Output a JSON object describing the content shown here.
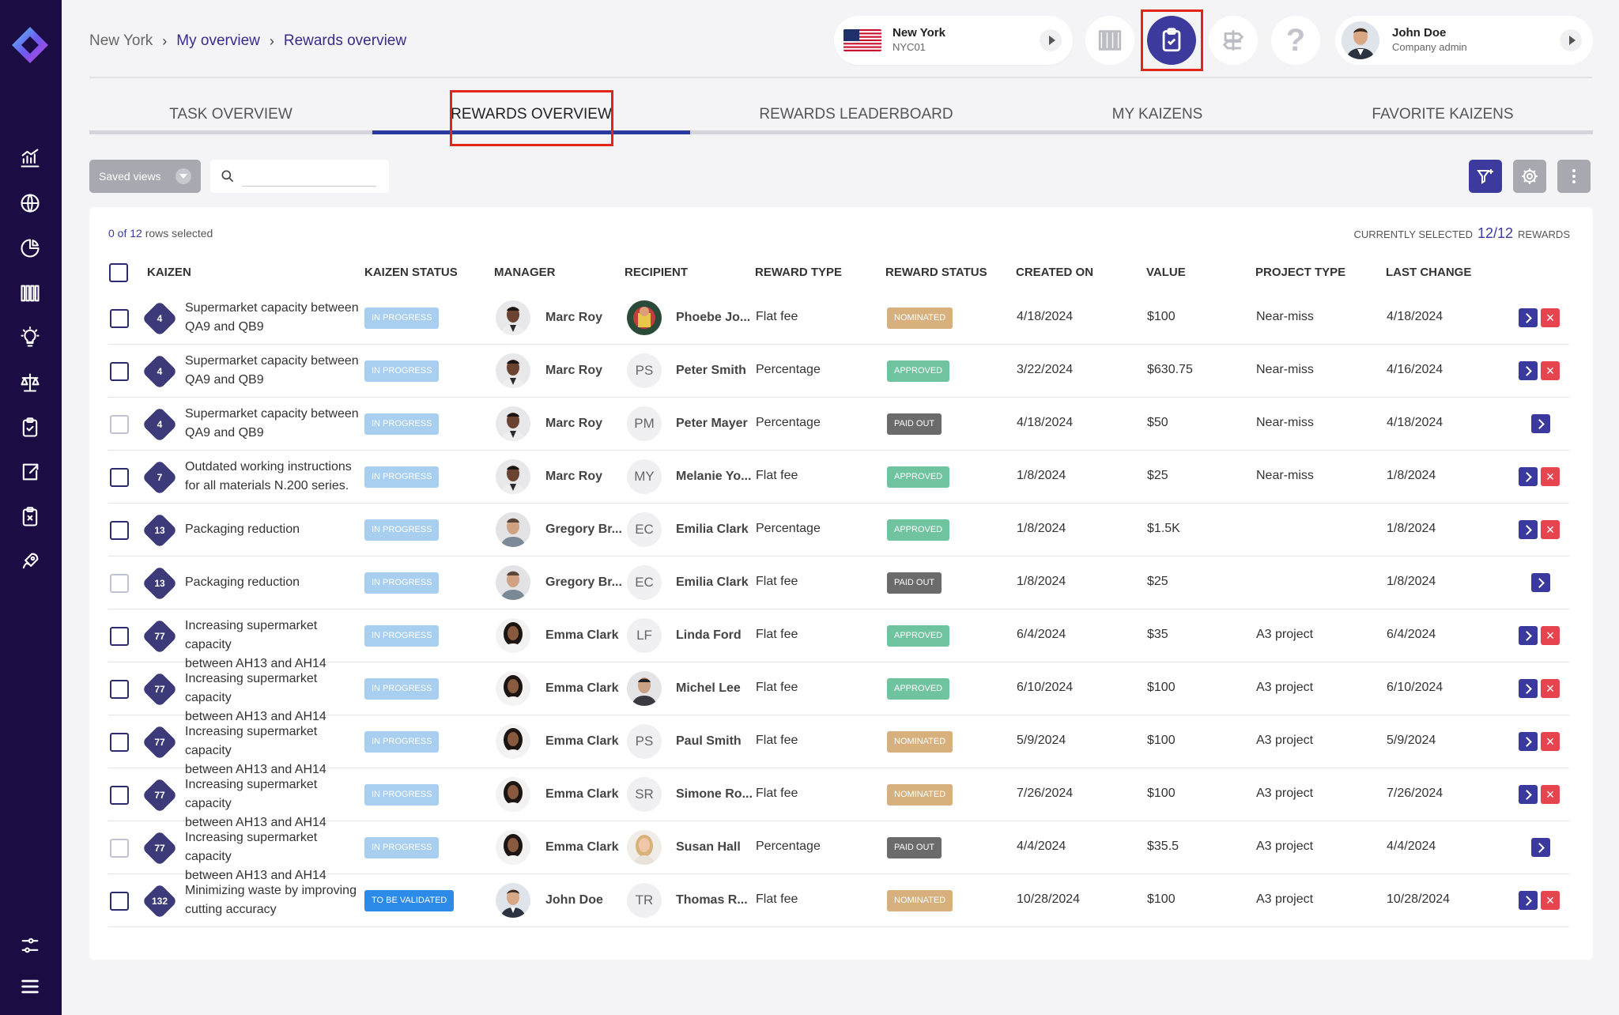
{
  "breadcrumb": {
    "root": "New York",
    "middle": "My overview",
    "current": "Rewards overview"
  },
  "location": {
    "name": "New York",
    "code": "NYC01"
  },
  "user": {
    "name": "John Doe",
    "role": "Company admin"
  },
  "tabs": [
    {
      "label": "TASK OVERVIEW"
    },
    {
      "label": "REWARDS OVERVIEW"
    },
    {
      "label": "REWARDS LEADERBOARD"
    },
    {
      "label": "MY KAIZENS"
    },
    {
      "label": "FAVORITE KAIZENS"
    }
  ],
  "toolbar": {
    "saved_views": "Saved views",
    "search_value": ""
  },
  "selection": {
    "selected_text": "0 of 12",
    "rows_selected": "rows selected",
    "current_label": "CURRENTLY SELECTED",
    "current_count": "12/12",
    "current_suffix": "REWARDS"
  },
  "columns": [
    "KAIZEN",
    "KAIZEN STATUS",
    "MANAGER",
    "RECIPIENT",
    "REWARD TYPE",
    "REWARD STATUS",
    "CREATED ON",
    "VALUE",
    "PROJECT TYPE",
    "LAST CHANGE"
  ],
  "colors": {
    "accent": "#3d3a9e",
    "sidebar": "#1b0d44",
    "approved": "#6fc49f",
    "nominated": "#d7b07d",
    "paid_out": "#6b6b6b",
    "in_progress": "#a8cff0",
    "to_validate": "#2c8be8"
  },
  "rows": [
    {
      "kaizen_id": "4",
      "kaizen_line1": "Supermarket capacity between",
      "kaizen_line2": "QA9 and QB9",
      "kaizen_status": "IN PROGRESS",
      "manager": "Marc Roy",
      "recipient": "Phoebe Jo...",
      "recipient_initials": "",
      "reward_type": "Flat fee",
      "reward_status": "NOMINATED",
      "created_on": "4/18/2024",
      "value": "$100",
      "project_type": "Near-miss",
      "last_change": "4/18/2024"
    },
    {
      "kaizen_id": "4",
      "kaizen_line1": "Supermarket capacity between",
      "kaizen_line2": "QA9 and QB9",
      "kaizen_status": "IN PROGRESS",
      "manager": "Marc Roy",
      "recipient": "Peter Smith",
      "recipient_initials": "PS",
      "reward_type": "Percentage",
      "reward_status": "APPROVED",
      "created_on": "3/22/2024",
      "value": "$630.75",
      "project_type": "Near-miss",
      "last_change": "4/16/2024"
    },
    {
      "kaizen_id": "4",
      "kaizen_line1": "Supermarket capacity between",
      "kaizen_line2": "QA9 and QB9",
      "kaizen_status": "IN PROGRESS",
      "manager": "Marc Roy",
      "recipient": "Peter Mayer",
      "recipient_initials": "PM",
      "reward_type": "Percentage",
      "reward_status": "PAID OUT",
      "created_on": "4/18/2024",
      "value": "$50",
      "project_type": "Near-miss",
      "last_change": "4/18/2024"
    },
    {
      "kaizen_id": "7",
      "kaizen_line1": "Outdated working instructions",
      "kaizen_line2": "for all materials N.200 series.",
      "kaizen_status": "IN PROGRESS",
      "manager": "Marc Roy",
      "recipient": "Melanie Yo...",
      "recipient_initials": "MY",
      "reward_type": "Flat fee",
      "reward_status": "APPROVED",
      "created_on": "1/8/2024",
      "value": "$25",
      "project_type": "Near-miss",
      "last_change": "1/8/2024"
    },
    {
      "kaizen_id": "13",
      "kaizen_line1": "Packaging reduction",
      "kaizen_line2": "",
      "kaizen_status": "IN PROGRESS",
      "manager": "Gregory Br...",
      "recipient": "Emilia Clark",
      "recipient_initials": "EC",
      "reward_type": "Percentage",
      "reward_status": "APPROVED",
      "created_on": "1/8/2024",
      "value": "$1.5K",
      "project_type": "",
      "last_change": "1/8/2024"
    },
    {
      "kaizen_id": "13",
      "kaizen_line1": "Packaging reduction",
      "kaizen_line2": "",
      "kaizen_status": "IN PROGRESS",
      "manager": "Gregory Br...",
      "recipient": "Emilia Clark",
      "recipient_initials": "EC",
      "reward_type": "Flat fee",
      "reward_status": "PAID OUT",
      "created_on": "1/8/2024",
      "value": "$25",
      "project_type": "",
      "last_change": "1/8/2024"
    },
    {
      "kaizen_id": "77",
      "kaizen_line1": "Increasing supermarket capacity",
      "kaizen_line2": "between AH13 and AH14",
      "kaizen_status": "IN PROGRESS",
      "manager": "Emma Clark",
      "recipient": "Linda Ford",
      "recipient_initials": "LF",
      "reward_type": "Flat fee",
      "reward_status": "APPROVED",
      "created_on": "6/4/2024",
      "value": "$35",
      "project_type": "A3 project",
      "last_change": "6/4/2024"
    },
    {
      "kaizen_id": "77",
      "kaizen_line1": "Increasing supermarket capacity",
      "kaizen_line2": "between AH13 and AH14",
      "kaizen_status": "IN PROGRESS",
      "manager": "Emma Clark",
      "recipient": "Michel Lee",
      "recipient_initials": "",
      "reward_type": "Flat fee",
      "reward_status": "APPROVED",
      "created_on": "6/10/2024",
      "value": "$100",
      "project_type": "A3 project",
      "last_change": "6/10/2024"
    },
    {
      "kaizen_id": "77",
      "kaizen_line1": "Increasing supermarket capacity",
      "kaizen_line2": "between AH13 and AH14",
      "kaizen_status": "IN PROGRESS",
      "manager": "Emma Clark",
      "recipient": "Paul Smith",
      "recipient_initials": "PS",
      "reward_type": "Flat fee",
      "reward_status": "NOMINATED",
      "created_on": "5/9/2024",
      "value": "$100",
      "project_type": "A3 project",
      "last_change": "5/9/2024"
    },
    {
      "kaizen_id": "77",
      "kaizen_line1": "Increasing supermarket capacity",
      "kaizen_line2": "between AH13 and AH14",
      "kaizen_status": "IN PROGRESS",
      "manager": "Emma Clark",
      "recipient": "Simone Ro...",
      "recipient_initials": "SR",
      "reward_type": "Flat fee",
      "reward_status": "NOMINATED",
      "created_on": "7/26/2024",
      "value": "$100",
      "project_type": "A3 project",
      "last_change": "7/26/2024"
    },
    {
      "kaizen_id": "77",
      "kaizen_line1": "Increasing supermarket capacity",
      "kaizen_line2": "between AH13 and AH14",
      "kaizen_status": "IN PROGRESS",
      "manager": "Emma Clark",
      "recipient": "Susan Hall",
      "recipient_initials": "",
      "reward_type": "Percentage",
      "reward_status": "PAID OUT",
      "created_on": "4/4/2024",
      "value": "$35.5",
      "project_type": "A3 project",
      "last_change": "4/4/2024"
    },
    {
      "kaizen_id": "132",
      "kaizen_line1": "Minimizing waste by improving",
      "kaizen_line2": "cutting accuracy",
      "kaizen_status": "TO BE VALIDATED",
      "manager": "John Doe",
      "recipient": "Thomas R...",
      "recipient_initials": "TR",
      "reward_type": "Flat fee",
      "reward_status": "NOMINATED",
      "created_on": "10/28/2024",
      "value": "$100",
      "project_type": "A3 project",
      "last_change": "10/28/2024"
    }
  ]
}
